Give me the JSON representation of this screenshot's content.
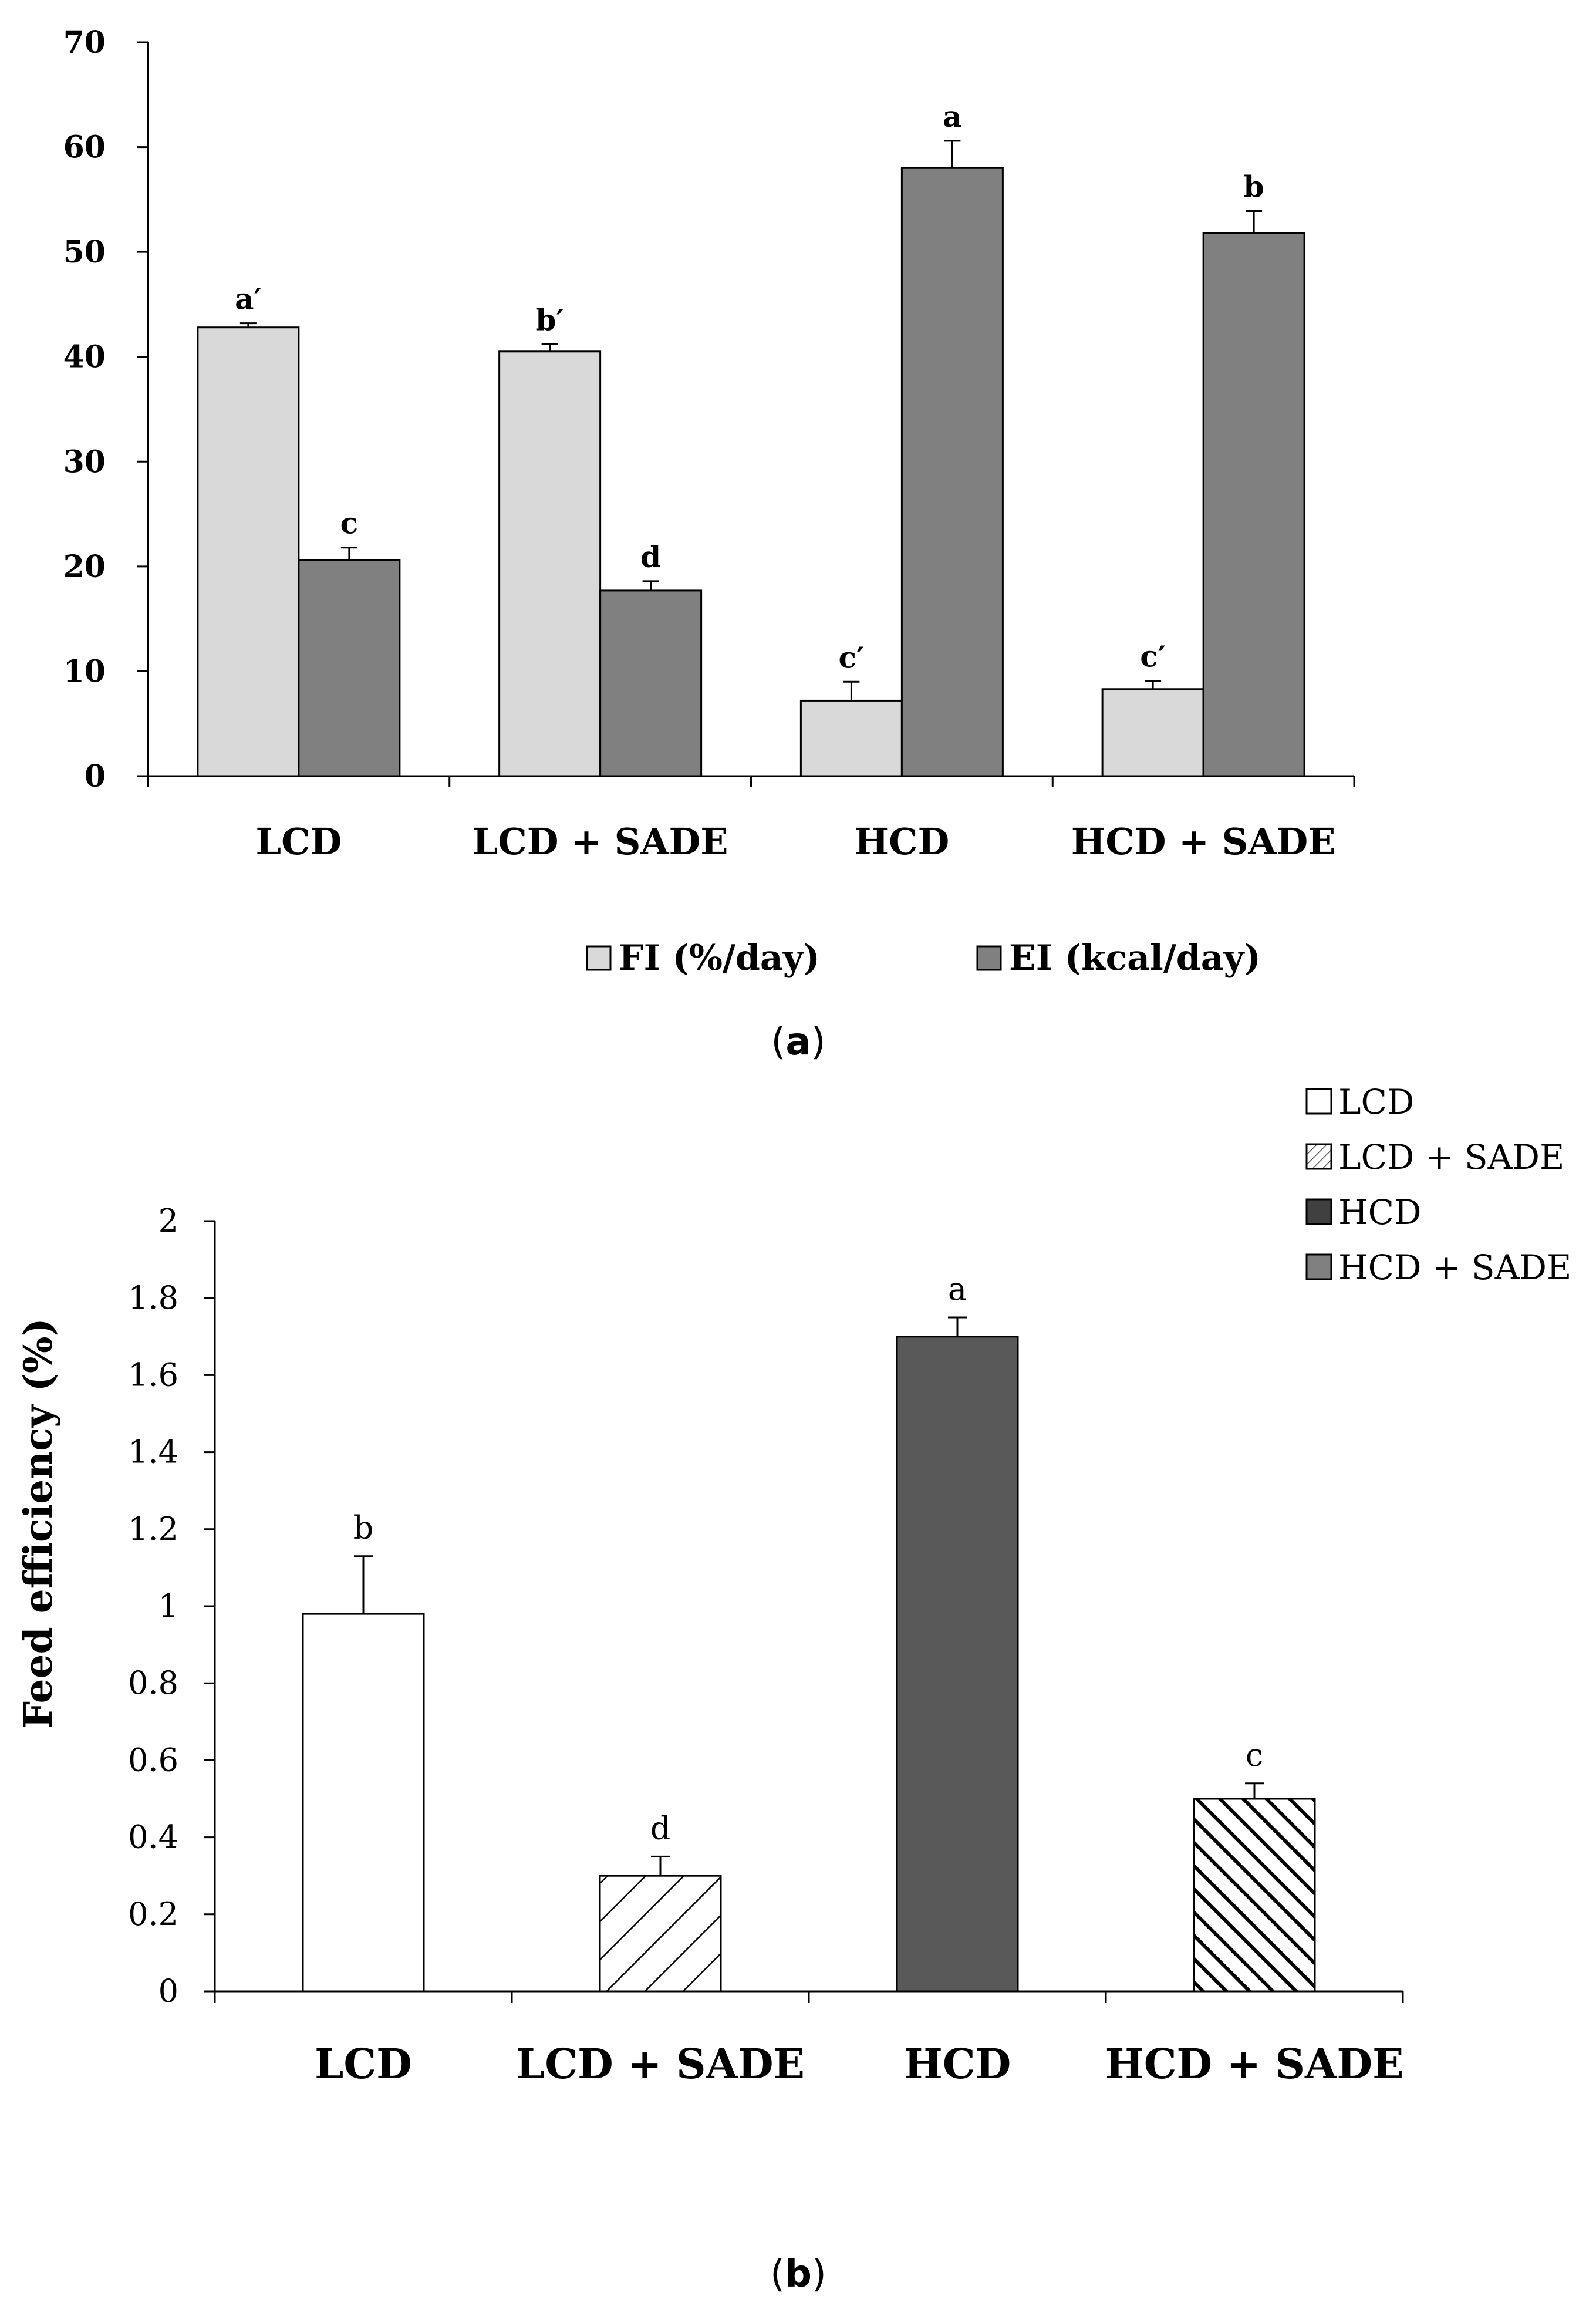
{
  "chart_data": [
    {
      "type": "bar",
      "panel": "(a)",
      "panel_letter": "a",
      "categories": [
        "LCD",
        "LCD + SADE",
        "HCD",
        "HCD + SADE"
      ],
      "series": [
        {
          "name": "FI (%/day)",
          "color": "#d9d9d9",
          "values": [
            42.8,
            40.5,
            7.2,
            8.3
          ],
          "errors": [
            0.4,
            0.7,
            1.8,
            0.8
          ],
          "labels": [
            "a′",
            "b′",
            "c′",
            "c′"
          ]
        },
        {
          "name": "EI (kcal/day)",
          "color": "#808080",
          "values": [
            20.6,
            17.7,
            58.0,
            51.8
          ],
          "errors": [
            1.2,
            0.9,
            2.6,
            2.1
          ],
          "labels": [
            "c",
            "d",
            "a",
            "b"
          ]
        }
      ],
      "ylim": [
        0,
        70
      ],
      "yticks": [
        "0",
        "10",
        "20",
        "30",
        "40",
        "50",
        "60",
        "70"
      ],
      "xlabel": "",
      "ylabel": "",
      "legend_position": "bottom"
    },
    {
      "type": "bar",
      "panel": "(b)",
      "panel_letter": "b",
      "categories": [
        "LCD",
        "LCD + SADE",
        "HCD",
        "HCD + SADE"
      ],
      "series": [
        {
          "name": "Feed efficiency",
          "values": [
            0.98,
            0.3,
            1.7,
            0.5
          ],
          "errors": [
            0.15,
            0.05,
            0.05,
            0.04
          ],
          "labels": [
            "b",
            "d",
            "a",
            "c"
          ]
        }
      ],
      "bar_styles": [
        "white",
        "sparse-hatch",
        "dark",
        "dense-hatch"
      ],
      "legend": [
        "LCD",
        "LCD + SADE",
        "HCD",
        "HCD + SADE"
      ],
      "ylim": [
        0,
        2
      ],
      "yticks": [
        "0",
        "0.2",
        "0.4",
        "0.6",
        "0.8",
        "1",
        "1.2",
        "1.4",
        "1.6",
        "1.8",
        "2"
      ],
      "xlabel": "",
      "ylabel": "Feed efficiency (%)",
      "legend_position": "top-right"
    }
  ]
}
